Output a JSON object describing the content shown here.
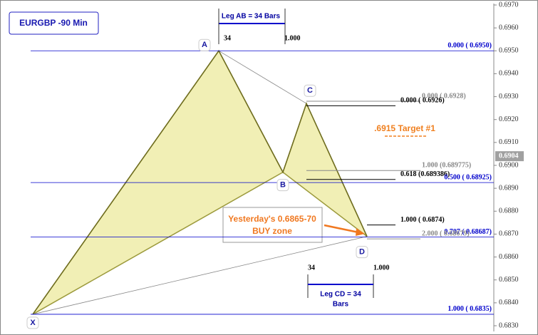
{
  "chart_data": {
    "type": "line",
    "title": "EURGBP -90 Min",
    "categories": [
      "X",
      "A",
      "B",
      "C",
      "D"
    ],
    "values": [
      0.6835,
      0.695,
      0.6897,
      0.6927,
      0.6869
    ],
    "color": "#9c9a3c",
    "fill_color": "#efeca8",
    "ylim": [
      0.683,
      0.697
    ],
    "yticks": [
      {
        "value": 0.683,
        "label": "0.6830"
      },
      {
        "value": 0.684,
        "label": "0.6840"
      },
      {
        "value": 0.685,
        "label": "0.6850"
      },
      {
        "value": 0.686,
        "label": "0.6860"
      },
      {
        "value": 0.687,
        "label": "0.6870"
      },
      {
        "value": 0.688,
        "label": "0.6880"
      },
      {
        "value": 0.689,
        "label": "0.6890"
      },
      {
        "value": 0.69,
        "label": "0.6900"
      },
      {
        "value": 0.691,
        "label": "0.6910"
      },
      {
        "value": 0.692,
        "label": "0.6920"
      },
      {
        "value": 0.693,
        "label": "0.6930"
      },
      {
        "value": 0.694,
        "label": "0.6940"
      },
      {
        "value": 0.695,
        "label": "0.6950"
      },
      {
        "value": 0.696,
        "label": "0.6960"
      },
      {
        "value": 0.697,
        "label": "0.6970"
      }
    ],
    "levels": [
      {
        "label": "0.000 ( 0.6950)",
        "value": 0.695,
        "color": "#0000cc"
      },
      {
        "label": "0.000 ( 0.6928)",
        "value": 0.6928,
        "color": "#888888"
      },
      {
        "label": "0.000 ( 0.6926)",
        "value": 0.6926,
        "color": "#000000"
      },
      {
        "label": "1.000 (0.689775)",
        "value": 0.689775,
        "color": "#888888"
      },
      {
        "label": "0.618 (0.689386)",
        "value": 0.689386,
        "color": "#000000"
      },
      {
        "label": "0.500 ( 0.68925)",
        "value": 0.68925,
        "color": "#0000cc"
      },
      {
        "label": "1.000 ( 0.6874)",
        "value": 0.6874,
        "color": "#000000"
      },
      {
        "label": "0.707 ( 0.68687)",
        "value": 0.68687,
        "color": "#0000cc"
      },
      {
        "label": "2.000 ( 0.68679)",
        "value": 0.68679,
        "color": "#888888"
      },
      {
        "label": "1.000 ( 0.6835)",
        "value": 0.6835,
        "color": "#0000cc"
      }
    ],
    "leg_ab": {
      "label": "Leg AB = 34 Bars",
      "start": "34",
      "end": "1.000"
    },
    "leg_cd": {
      "label_lines": [
        "Leg CD = 34",
        "Bars"
      ],
      "start": "34",
      "end": "1.000"
    },
    "buy_zone": [
      "Yesterday's 0.6865-70",
      "BUY zone"
    ],
    "target": ".6915 Target #1",
    "last_price": {
      "value": 0.6904,
      "label": "0.6904"
    }
  }
}
